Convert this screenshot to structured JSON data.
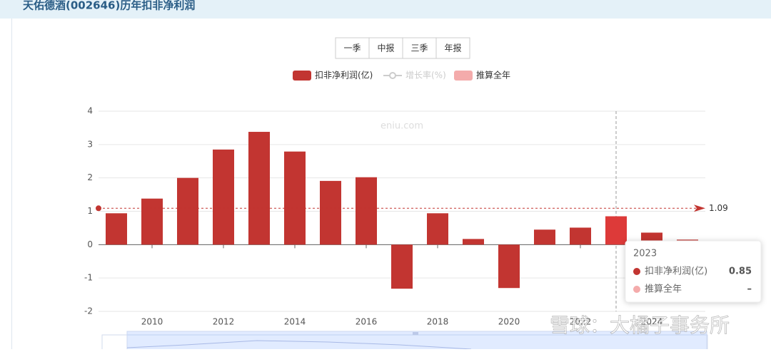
{
  "header": {
    "title": "天佑德酒(002646)历年扣非净利润"
  },
  "buttons": [
    "一季",
    "中报",
    "三季",
    "年报"
  ],
  "chart_data": {
    "type": "bar",
    "categories": [
      null,
      "2010",
      null,
      "2012",
      null,
      "2014",
      null,
      "2016",
      null,
      "2018",
      null,
      "2020",
      null,
      "2022",
      null,
      "2024",
      null
    ],
    "series": [
      {
        "name": "扣非净利润(亿)",
        "color": "#c23531",
        "values": [
          0.94,
          1.38,
          2.0,
          2.85,
          3.38,
          2.79,
          1.91,
          2.02,
          -1.32,
          0.94,
          0.17,
          -1.3,
          0.45,
          0.51,
          0.85,
          0.36,
          0.15
        ]
      }
    ],
    "legend_extra": [
      {
        "name": "增长率(%)",
        "color": "#cccccc"
      },
      {
        "name": "推算全年",
        "color": "#f4abab"
      }
    ],
    "ylim": [
      -2,
      4
    ],
    "yticks": [
      -2,
      -1,
      0,
      1,
      2,
      3,
      4
    ],
    "grid": true,
    "average": 1.09,
    "highlight_index": 14,
    "highlight_color": "#dd3a39",
    "watermark": "eniu.com",
    "tooltip": {
      "title": "2023",
      "projected_value": "–"
    }
  },
  "credit": "雪球：大橘子事务所"
}
